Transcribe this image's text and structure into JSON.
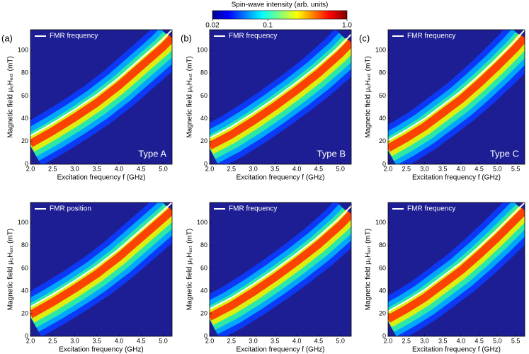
{
  "colorbar": {
    "title": "Spin-wave intensity (arb. units)",
    "scale": "log",
    "lim": [
      0.02,
      1
    ],
    "ticks": [
      0.02,
      0.1,
      {
        "value": 1,
        "label": "1.0"
      }
    ]
  },
  "chart_data": [
    {
      "type": "heatmap",
      "panel_label": "(a)",
      "annotation": "Type A",
      "xlabel": "Excitation frequency f (GHz)",
      "ylabel": "Magnetic field μ₀Hₑₓₜ (mT)",
      "xlim": [
        2.0,
        5.2
      ],
      "ylim": [
        0,
        118
      ],
      "xticks": [
        {
          "value": 2,
          "label": "2.0"
        },
        2.5,
        {
          "value": 3,
          "label": "3.0"
        },
        3.5,
        {
          "value": 4,
          "label": "4.0"
        },
        4.5,
        {
          "value": 5,
          "label": "5.0"
        }
      ],
      "yticks": [
        0,
        20,
        40,
        60,
        80,
        100
      ],
      "series": [
        {
          "name": "FMR frequency",
          "color": "#ffffff",
          "x": [
            2.0,
            2.5,
            3.0,
            3.5,
            4.0,
            4.5,
            5.0,
            5.2
          ],
          "values": [
            25,
            36,
            48,
            61,
            76,
            93,
            110,
            118
          ]
        }
      ]
    },
    {
      "type": "heatmap",
      "panel_label": "(b)",
      "annotation": "Type B",
      "xlabel": "Excitation frequency f (GHz)",
      "ylabel": "Magnetic field μ₀Hₑₓₜ (mT)",
      "xlim": [
        2.0,
        5.25
      ],
      "ylim": [
        0,
        118
      ],
      "xticks": [
        {
          "value": 2,
          "label": "2.0"
        },
        2.5,
        {
          "value": 3,
          "label": "3.0"
        },
        3.5,
        {
          "value": 4,
          "label": "4.0"
        },
        4.5,
        {
          "value": 5,
          "label": "5.0"
        }
      ],
      "yticks": [
        0,
        20,
        40,
        60,
        80,
        100
      ],
      "series": [
        {
          "name": "FMR frequency",
          "color": "#ffffff",
          "x": [
            2.0,
            2.5,
            3.0,
            3.5,
            4.0,
            4.5,
            5.0,
            5.25
          ],
          "values": [
            23,
            33,
            45,
            58,
            72,
            87,
            104,
            114
          ]
        }
      ]
    },
    {
      "type": "heatmap",
      "panel_label": "(c)",
      "annotation": "Type C",
      "xlabel": "Excitation frequency f (GHz)",
      "ylabel": "Magnetic field μ₀Hₑₓₜ (mT)",
      "xlim": [
        2.0,
        5.75
      ],
      "ylim": [
        0,
        118
      ],
      "xticks": [
        {
          "value": 2,
          "label": "2.0"
        },
        2.5,
        {
          "value": 3,
          "label": "3.0"
        },
        3.5,
        {
          "value": 4,
          "label": "4.0"
        },
        4.5,
        {
          "value": 5,
          "label": "5.0"
        },
        5.5
      ],
      "yticks": [
        0,
        20,
        40,
        60,
        80,
        100
      ],
      "series": [
        {
          "name": "FMR frequency",
          "color": "#ffffff",
          "x": [
            2.0,
            2.5,
            3.0,
            3.5,
            4.0,
            4.5,
            5.0,
            5.5,
            5.75
          ],
          "values": [
            21,
            30,
            40,
            52,
            64,
            78,
            93,
            109,
            118
          ]
        }
      ]
    },
    {
      "type": "heatmap",
      "xlabel": "Excitation frequency (GHz)",
      "ylabel": "Magnetic field μ₀Hₑₓₜ (mT)",
      "xlim": [
        2.0,
        5.2
      ],
      "ylim": [
        0,
        118
      ],
      "xticks": [
        {
          "value": 2,
          "label": "2.0"
        },
        2.5,
        {
          "value": 3,
          "label": "3.0"
        },
        3.5,
        {
          "value": 4,
          "label": "4.0"
        },
        4.5,
        {
          "value": 5,
          "label": "5.0"
        }
      ],
      "yticks": [
        0,
        20,
        40,
        60,
        80,
        100
      ],
      "series": [
        {
          "name": "FMR position",
          "color": "#ffffff",
          "x": [
            2.0,
            2.5,
            3.0,
            3.5,
            4.0,
            4.5,
            5.0,
            5.2
          ],
          "values": [
            26,
            37,
            49,
            62,
            77,
            94,
            111,
            118
          ]
        }
      ]
    },
    {
      "type": "heatmap",
      "xlabel": "Excitation frequency f (GHz)",
      "ylabel": "Magnetic field μ₀Hₑₓₜ (mT)",
      "xlim": [
        2.0,
        5.25
      ],
      "ylim": [
        0,
        118
      ],
      "xticks": [
        {
          "value": 2,
          "label": "2.0"
        },
        2.5,
        {
          "value": 3,
          "label": "3.0"
        },
        3.5,
        {
          "value": 4,
          "label": "4.0"
        },
        4.5,
        {
          "value": 5,
          "label": "5.0"
        }
      ],
      "yticks": [
        0,
        20,
        40,
        60,
        80,
        100
      ],
      "series": [
        {
          "name": "FMR frequency",
          "color": "#ffffff",
          "x": [
            2.0,
            2.5,
            3.0,
            3.5,
            4.0,
            4.5,
            5.0,
            5.25
          ],
          "values": [
            24,
            34,
            46,
            59,
            73,
            88,
            105,
            115
          ]
        }
      ]
    },
    {
      "type": "heatmap",
      "xlabel": "Excitation frequency f (GHz)",
      "ylabel": "Magnetic field μ₀Hₑₓₜ (mT)",
      "xlim": [
        2.0,
        5.75
      ],
      "ylim": [
        0,
        118
      ],
      "xticks": [
        {
          "value": 2,
          "label": "2.0"
        },
        2.5,
        {
          "value": 3,
          "label": "3.0"
        },
        3.5,
        {
          "value": 4,
          "label": "4.0"
        },
        4.5,
        {
          "value": 5,
          "label": "5.0"
        },
        5.5
      ],
      "yticks": [
        0,
        20,
        40,
        60,
        80,
        100
      ],
      "series": [
        {
          "name": "FMR frequency",
          "color": "#ffffff",
          "x": [
            2.0,
            2.5,
            3.0,
            3.5,
            4.0,
            4.5,
            5.0,
            5.5,
            5.75
          ],
          "values": [
            22,
            31,
            41,
            53,
            65,
            79,
            94,
            110,
            118
          ]
        }
      ]
    }
  ]
}
